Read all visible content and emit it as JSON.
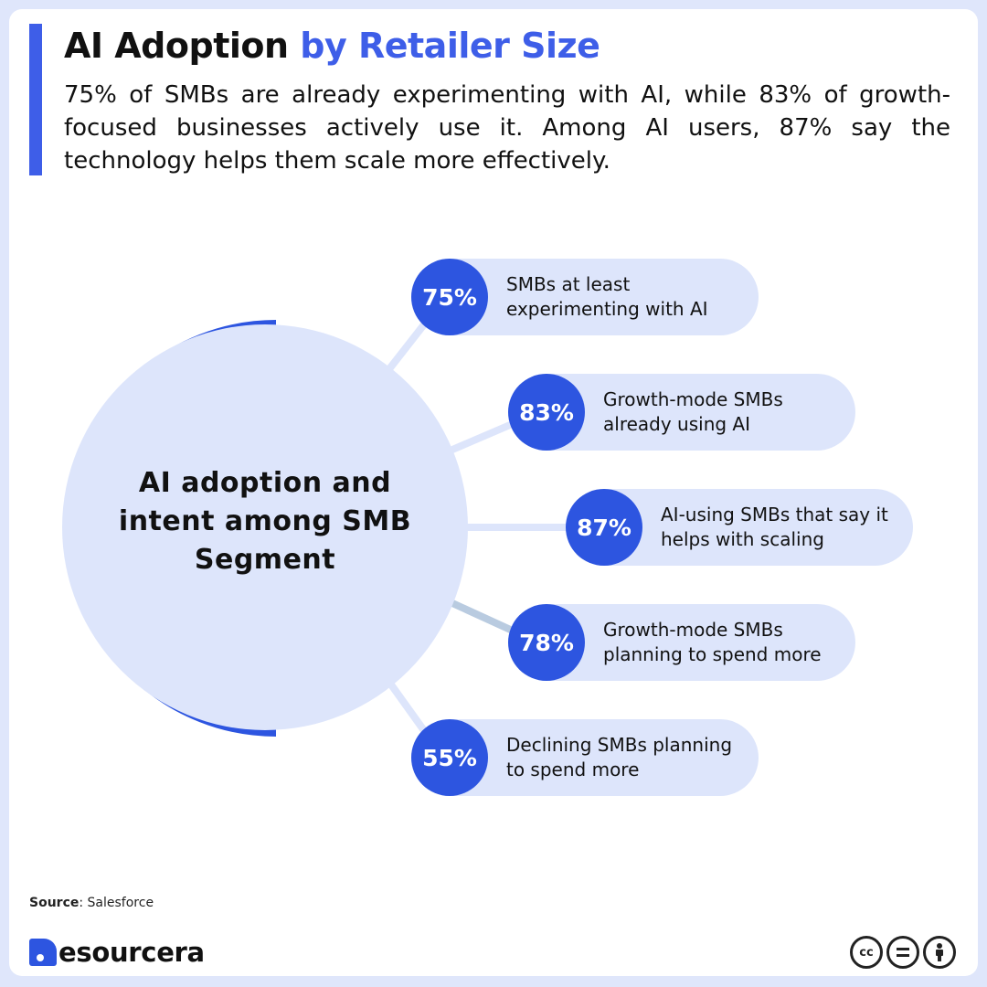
{
  "header": {
    "title_main": "AI Adoption",
    "title_highlight": "by Retailer Size",
    "subtitle": "75% of SMBs are already experimenting with AI, while 83% of growth-focused businesses actively use it. Among AI users, 87% say the technology helps them scale more effectively."
  },
  "diagram": {
    "hub_label": "AI adoption and intent among SMB Segment",
    "items": [
      {
        "value": "75%",
        "label": "SMBs at least experimenting with AI"
      },
      {
        "value": "83%",
        "label": "Growth-mode SMBs already using AI"
      },
      {
        "value": "87%",
        "label": "AI-using SMBs that say it helps with scaling"
      },
      {
        "value": "78%",
        "label": "Growth-mode SMBs planning to spend more"
      },
      {
        "value": "55%",
        "label": "Declining SMBs planning to spend more"
      }
    ]
  },
  "footer": {
    "source_label": "Source",
    "source_value": ": Salesforce",
    "brand": "esourcera",
    "license_icons": [
      "cc-icon",
      "equals-icon",
      "person-icon"
    ]
  },
  "colors": {
    "accent": "#3e5ee8",
    "circle_fill": "#2d55e0",
    "pill_bg": "#dde5fb",
    "hub_fill": "#dde5fb",
    "background": "#dfe6fb"
  }
}
